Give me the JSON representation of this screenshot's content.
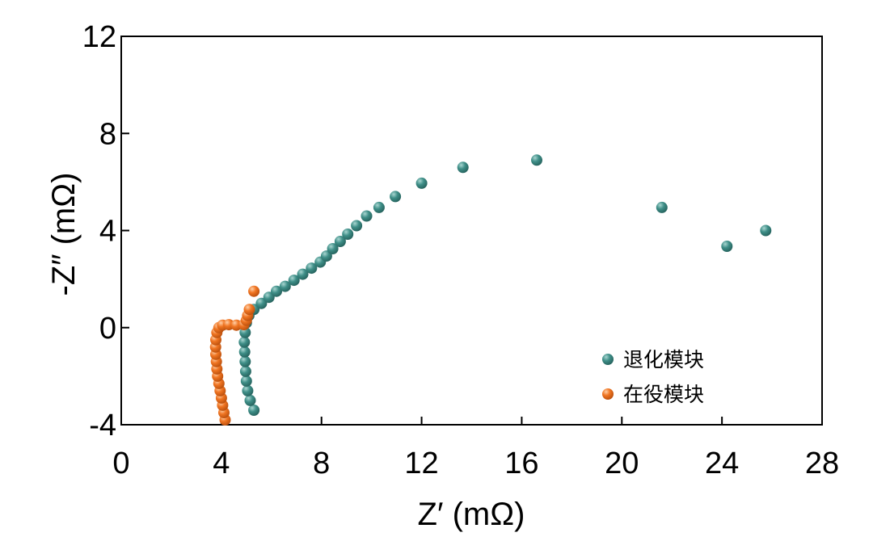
{
  "chart_data": {
    "type": "scatter",
    "title": "",
    "xlabel": "Z′ (mΩ)",
    "ylabel": "-Z″ (mΩ)",
    "xlim": [
      0,
      28
    ],
    "ylim": [
      -4,
      12
    ],
    "xticks": [
      0,
      4,
      8,
      12,
      16,
      20,
      24,
      28
    ],
    "yticks": [
      -4,
      0,
      4,
      8,
      12
    ],
    "grid": false,
    "legend_position": "bottom-right",
    "series": [
      {
        "name": "退化模块",
        "color": "#3f8f88",
        "points": [
          [
            5.3,
            -3.4
          ],
          [
            5.15,
            -3.0
          ],
          [
            5.05,
            -2.6
          ],
          [
            5.0,
            -2.2
          ],
          [
            4.97,
            -1.8
          ],
          [
            4.95,
            -1.4
          ],
          [
            4.93,
            -1.0
          ],
          [
            4.92,
            -0.6
          ],
          [
            4.95,
            -0.2
          ],
          [
            5.0,
            0.2
          ],
          [
            5.1,
            0.5
          ],
          [
            5.3,
            0.75
          ],
          [
            5.6,
            1.0
          ],
          [
            5.9,
            1.25
          ],
          [
            6.2,
            1.5
          ],
          [
            6.55,
            1.7
          ],
          [
            6.9,
            1.95
          ],
          [
            7.25,
            2.2
          ],
          [
            7.6,
            2.45
          ],
          [
            7.95,
            2.7
          ],
          [
            8.2,
            2.95
          ],
          [
            8.45,
            3.25
          ],
          [
            8.75,
            3.55
          ],
          [
            9.05,
            3.85
          ],
          [
            9.4,
            4.2
          ],
          [
            9.8,
            4.6
          ],
          [
            10.3,
            4.95
          ],
          [
            10.95,
            5.4
          ],
          [
            12.0,
            5.95
          ],
          [
            13.65,
            6.6
          ],
          [
            16.6,
            6.9
          ],
          [
            21.6,
            4.95
          ],
          [
            24.2,
            3.35
          ],
          [
            25.75,
            4.0
          ]
        ]
      },
      {
        "name": "在役模块",
        "color": "#f07522",
        "points": [
          [
            4.15,
            -3.8
          ],
          [
            4.1,
            -3.5
          ],
          [
            4.05,
            -3.2
          ],
          [
            4.0,
            -2.9
          ],
          [
            3.95,
            -2.6
          ],
          [
            3.9,
            -2.3
          ],
          [
            3.85,
            -2.0
          ],
          [
            3.82,
            -1.7
          ],
          [
            3.8,
            -1.4
          ],
          [
            3.78,
            -1.1
          ],
          [
            3.77,
            -0.8
          ],
          [
            3.78,
            -0.5
          ],
          [
            3.82,
            -0.2
          ],
          [
            3.9,
            0.0
          ],
          [
            4.05,
            0.1
          ],
          [
            4.3,
            0.12
          ],
          [
            4.6,
            0.1
          ],
          [
            4.9,
            0.12
          ],
          [
            5.0,
            0.3
          ],
          [
            5.05,
            0.5
          ],
          [
            5.12,
            0.75
          ],
          [
            5.3,
            1.5
          ]
        ]
      }
    ]
  }
}
